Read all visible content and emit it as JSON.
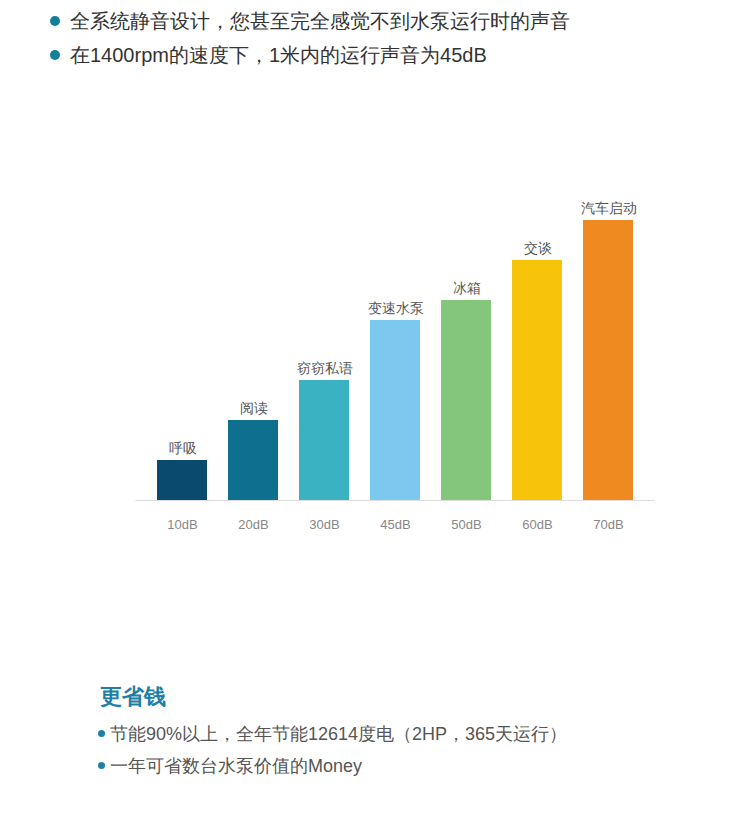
{
  "header_bullets": [
    "全系统静音设计，您甚至完全感觉不到水泵运行时的声音",
    "在1400rpm的速度下，1米内的运行声音为45dB"
  ],
  "chart_data": {
    "type": "bar",
    "categories": [
      "呼吸",
      "阅读",
      "窃窃私语",
      "变速水泵",
      "冰箱",
      "交谈",
      "汽车启动"
    ],
    "values": [
      10,
      20,
      30,
      45,
      50,
      60,
      70
    ],
    "value_labels": [
      "10dB",
      "20dB",
      "30dB",
      "45dB",
      "50dB",
      "60dB",
      "70dB"
    ],
    "colors": [
      "#0b4a6f",
      "#0e6f8e",
      "#3bb2c2",
      "#7cc8ee",
      "#84c67c",
      "#f6c40a",
      "#ee8a1f"
    ],
    "ylim": [
      0,
      70
    ],
    "data_labels": true,
    "tick_labels": false,
    "grid": false
  },
  "footer": {
    "title": "更省钱",
    "bullets": [
      "节能90%以上，全年节能12614度电（2HP，365天运行）",
      "一年可省数台水泵价值的Money"
    ]
  }
}
